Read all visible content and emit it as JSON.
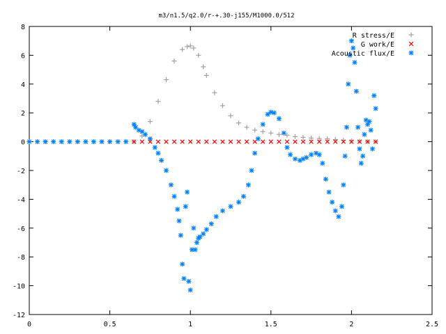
{
  "chart_data": {
    "type": "scatter",
    "title": "m3/n1.5/q2.0/r-+.30-j155/M1000.0/512",
    "xlabel": "",
    "ylabel": "",
    "xlim": [
      0,
      2.5
    ],
    "ylim": [
      -12,
      8
    ],
    "xticks": [
      0,
      0.5,
      1,
      1.5,
      2,
      2.5
    ],
    "xtick_labels": [
      "0",
      "0.5",
      "1",
      "1.5",
      "2",
      "2.5"
    ],
    "yticks": [
      -12,
      -10,
      -8,
      -6,
      -4,
      -2,
      0,
      2,
      4,
      6,
      8
    ],
    "ytick_labels": [
      "-12",
      "-10",
      "-8",
      "-6",
      "-4",
      "-2",
      "0",
      "2",
      "4",
      "6",
      "8"
    ],
    "grid": false,
    "legend_position": "top-right",
    "series": [
      {
        "name": "R stress/E",
        "marker": "+",
        "color": "#a0a0a0",
        "x": [
          0.65,
          0.7,
          0.75,
          0.8,
          0.85,
          0.9,
          0.95,
          0.98,
          1.0,
          1.02,
          1.05,
          1.08,
          1.1,
          1.15,
          1.2,
          1.25,
          1.3,
          1.35,
          1.4,
          1.45,
          1.5,
          1.55,
          1.6,
          1.65,
          1.7,
          1.75,
          1.8,
          1.85,
          1.9,
          1.95,
          2.0,
          2.05,
          2.1,
          2.15
        ],
        "y": [
          0.0,
          0.4,
          1.4,
          2.8,
          4.3,
          5.6,
          6.4,
          6.6,
          6.65,
          6.5,
          6.0,
          5.2,
          4.6,
          3.4,
          2.5,
          1.8,
          1.3,
          1.0,
          0.8,
          0.7,
          0.6,
          0.5,
          0.45,
          0.35,
          0.3,
          0.25,
          0.22,
          0.2,
          0.15,
          0.1,
          0.05,
          0.03,
          0.0,
          0.0
        ]
      },
      {
        "name": "G work/E",
        "marker": "x",
        "color": "#ff0000",
        "x": [
          0.65,
          0.7,
          0.75,
          0.8,
          0.85,
          0.9,
          0.95,
          1.0,
          1.05,
          1.1,
          1.15,
          1.2,
          1.25,
          1.3,
          1.35,
          1.4,
          1.45,
          1.5,
          1.55,
          1.6,
          1.65,
          1.7,
          1.75,
          1.8,
          1.85,
          1.9,
          1.95,
          2.0,
          2.05,
          2.1,
          2.15
        ],
        "y": [
          0,
          0,
          0,
          0,
          0,
          0,
          0,
          0,
          0,
          0,
          0,
          0,
          0,
          0,
          0,
          0,
          0,
          0,
          0,
          0,
          0,
          0,
          0,
          0,
          0,
          0,
          0,
          0,
          0,
          0,
          0
        ]
      },
      {
        "name": "Acoustic flux/E",
        "marker": "*",
        "color": "#0080ff",
        "x": [
          0.0,
          0.05,
          0.1,
          0.15,
          0.2,
          0.25,
          0.3,
          0.35,
          0.4,
          0.45,
          0.5,
          0.55,
          0.6,
          0.65,
          0.66,
          0.68,
          0.7,
          0.72,
          0.75,
          0.78,
          0.8,
          0.82,
          0.85,
          0.88,
          0.9,
          0.92,
          0.93,
          0.94,
          0.95,
          0.96,
          0.97,
          0.98,
          0.99,
          1.0,
          1.01,
          1.02,
          1.03,
          1.04,
          1.05,
          1.06,
          1.08,
          1.1,
          1.13,
          1.16,
          1.2,
          1.25,
          1.3,
          1.33,
          1.36,
          1.38,
          1.4,
          1.42,
          1.45,
          1.48,
          1.5,
          1.52,
          1.55,
          1.58,
          1.6,
          1.62,
          1.65,
          1.68,
          1.7,
          1.72,
          1.75,
          1.78,
          1.8,
          1.82,
          1.84,
          1.86,
          1.88,
          1.9,
          1.92,
          1.94,
          1.95,
          1.96,
          1.97,
          1.98,
          1.99,
          2.0,
          2.01,
          2.02,
          2.03,
          2.04,
          2.05,
          2.06,
          2.07,
          2.08,
          2.09,
          2.1,
          2.11,
          2.12,
          2.13,
          2.14,
          2.15
        ],
        "y": [
          0,
          0,
          0,
          0,
          0,
          0,
          0,
          0,
          0,
          0,
          0,
          0,
          0,
          1.2,
          1.0,
          0.8,
          0.7,
          0.5,
          0.2,
          -0.4,
          -0.8,
          -1.3,
          -2.0,
          -3.0,
          -3.8,
          -4.7,
          -5.5,
          -6.5,
          -8.5,
          -9.5,
          -4.5,
          -3.5,
          -9.7,
          -10.3,
          -7.5,
          -6.0,
          -7.5,
          -7.0,
          -6.7,
          -6.6,
          -6.4,
          -6.1,
          -5.7,
          -5.2,
          -4.8,
          -4.5,
          -4.2,
          -3.8,
          -3.0,
          -2.0,
          -0.8,
          0.2,
          1.2,
          1.9,
          2.05,
          2.0,
          1.6,
          0.6,
          -0.4,
          -0.9,
          -1.2,
          -1.3,
          -1.2,
          -1.1,
          -0.9,
          -0.8,
          -0.9,
          -1.5,
          -2.6,
          -3.5,
          -4.2,
          -4.8,
          -5.2,
          -4.5,
          -3.0,
          -1.0,
          1.0,
          4.0,
          6.0,
          7.0,
          6.5,
          5.5,
          3.5,
          1.0,
          -0.5,
          -1.5,
          -1.0,
          0.5,
          1.5,
          1.2,
          1.4,
          0.8,
          -0.5,
          3.2,
          2.3
        ]
      }
    ]
  }
}
